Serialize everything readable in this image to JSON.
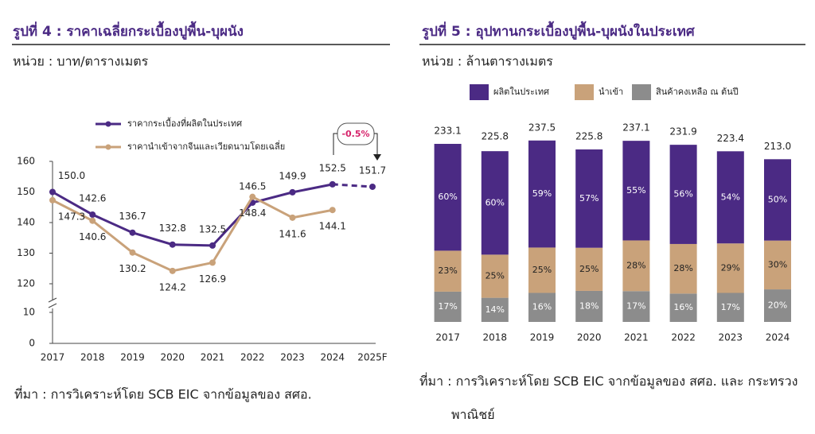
{
  "chart_data": [
    {
      "type": "line",
      "title": "รูปที่ 4 : ราคาเฉลี่ยกระเบื้องปูพื้น-บุผนัง",
      "subtitle": "หน่วย : บาท/ตารางเมตร",
      "source": "ที่มา : การวิเคราะห์โดย SCB EIC จากข้อมูลของ สศอ.",
      "categories": [
        "2017",
        "2018",
        "2019",
        "2020",
        "2021",
        "2022",
        "2023",
        "2024",
        "2025F"
      ],
      "series": [
        {
          "name": "ราคากระเบื้องที่ผลิตในประเทศ",
          "color": "#4b2a84",
          "dashed_last": true,
          "values": [
            150.0,
            142.6,
            136.7,
            132.8,
            132.5,
            146.5,
            149.9,
            152.5,
            151.7
          ],
          "value_labels": [
            "150.0",
            "142.6",
            "136.7",
            "132.8",
            "132.5",
            "146.5",
            "149.9",
            "152.5",
            "151.7"
          ]
        },
        {
          "name": "ราคานำเข้าจากจีนและเวียดนามโดยเฉลี่ย",
          "color": "#c9a27a",
          "values": [
            147.3,
            140.6,
            130.2,
            124.2,
            126.9,
            148.4,
            141.6,
            144.1,
            null
          ],
          "value_labels": [
            "147.3",
            "140.6",
            "130.2",
            "124.2",
            "126.9",
            "148.4",
            "141.6",
            "144.1",
            null
          ]
        }
      ],
      "ylim": [
        0,
        160
      ],
      "yticks": [
        0,
        10,
        120,
        130,
        140,
        150,
        160
      ],
      "axis_break": [
        10,
        120
      ],
      "annotation": "-0.5%",
      "grid": false
    },
    {
      "type": "bar",
      "title": "รูปที่ 5 : อุปทานกระเบื้องปูพื้น-บุผนังในประเทศ",
      "subtitle": "หน่วย : ล้านตารางเมตร",
      "source": "ที่มา : การวิเคราะห์โดย SCB EIC จากข้อมูลของ สศอ. และ กระทรวงพาณิชย์",
      "categories": [
        "2017",
        "2018",
        "2019",
        "2020",
        "2021",
        "2022",
        "2023",
        "2024"
      ],
      "totals": [
        233.1,
        225.8,
        237.5,
        225.8,
        237.1,
        231.9,
        223.4,
        213.0
      ],
      "total_labels": [
        "233.1",
        "225.8",
        "237.5",
        "225.8",
        "237.1",
        "231.9",
        "223.4",
        "213.0"
      ],
      "series": [
        {
          "name": "ผลิตในประเทศ",
          "color": "#4b2a84",
          "values": [
            60,
            60,
            59,
            57,
            55,
            56,
            54,
            50
          ],
          "value_labels": [
            "60%",
            "60%",
            "59%",
            "57%",
            "55%",
            "56%",
            "54%",
            "50%"
          ]
        },
        {
          "name": "นำเข้า",
          "color": "#c9a27a",
          "values": [
            23,
            25,
            25,
            25,
            28,
            28,
            29,
            30
          ],
          "value_labels": [
            "23%",
            "25%",
            "25%",
            "25%",
            "28%",
            "28%",
            "29%",
            "30%"
          ]
        },
        {
          "name": "สินค้าคงเหลือ ณ ต้นปี",
          "color": "#8c8c8c",
          "values": [
            17,
            14,
            16,
            18,
            17,
            16,
            17,
            20
          ],
          "value_labels": [
            "17%",
            "14%",
            "16%",
            "18%",
            "17%",
            "16%",
            "17%",
            "20%"
          ]
        }
      ]
    }
  ]
}
